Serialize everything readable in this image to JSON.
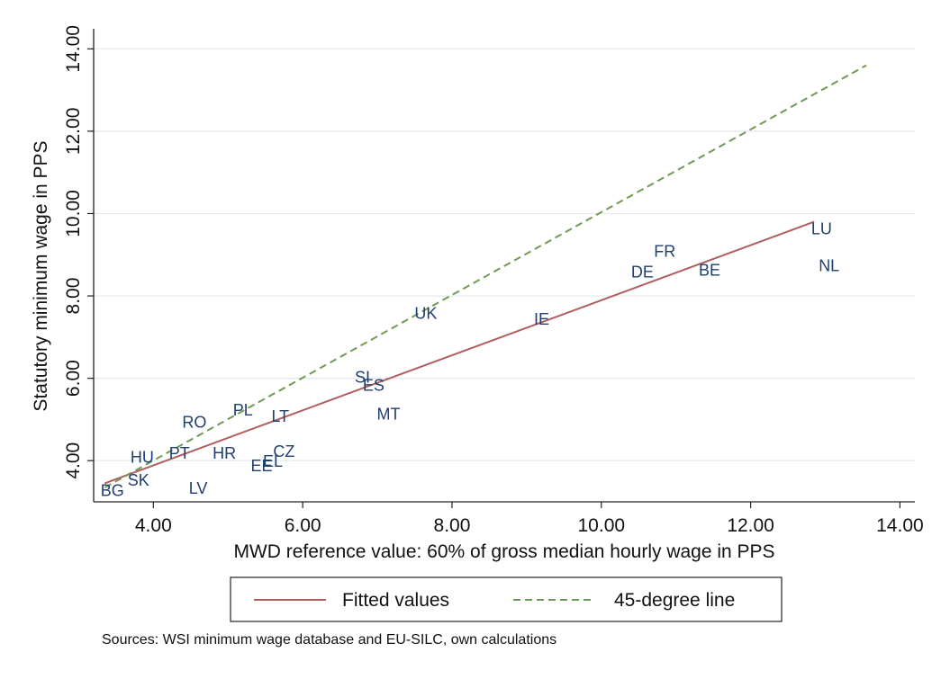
{
  "chart_data": {
    "type": "scatter",
    "xlabel": "MWD reference value: 60% of gross median hourly wage in PPS",
    "ylabel": "Statutory minimum wage in PPS",
    "xlim": [
      3.2,
      14.2
    ],
    "ylim": [
      3.0,
      14.4
    ],
    "xticks": [
      "4.00",
      "6.00",
      "8.00",
      "10.00",
      "12.00",
      "14.00"
    ],
    "yticks": [
      "4.00",
      "6.00",
      "8.00",
      "10.00",
      "12.00",
      "14.00"
    ],
    "grid": true,
    "legend_position": "bottom",
    "points": [
      {
        "label": "BG",
        "x": 3.45,
        "y": 3.3
      },
      {
        "label": "SK",
        "x": 3.8,
        "y": 3.55
      },
      {
        "label": "HU",
        "x": 3.85,
        "y": 4.1
      },
      {
        "label": "PT",
        "x": 4.35,
        "y": 4.2
      },
      {
        "label": "LV",
        "x": 4.6,
        "y": 3.35
      },
      {
        "label": "RO",
        "x": 4.55,
        "y": 4.95
      },
      {
        "label": "HR",
        "x": 4.95,
        "y": 4.2
      },
      {
        "label": "PL",
        "x": 5.2,
        "y": 5.25
      },
      {
        "label": "EE",
        "x": 5.45,
        "y": 3.9
      },
      {
        "label": "EL",
        "x": 5.6,
        "y": 4.0
      },
      {
        "label": "CZ",
        "x": 5.75,
        "y": 4.25
      },
      {
        "label": "LT",
        "x": 5.7,
        "y": 5.1
      },
      {
        "label": "SI",
        "x": 6.8,
        "y": 6.05
      },
      {
        "label": "ES",
        "x": 6.95,
        "y": 5.85
      },
      {
        "label": "MT",
        "x": 7.15,
        "y": 5.15
      },
      {
        "label": "UK",
        "x": 7.65,
        "y": 7.6
      },
      {
        "label": "IE",
        "x": 9.2,
        "y": 7.45
      },
      {
        "label": "DE",
        "x": 10.55,
        "y": 8.6
      },
      {
        "label": "FR",
        "x": 10.85,
        "y": 9.1
      },
      {
        "label": "BE",
        "x": 11.45,
        "y": 8.65
      },
      {
        "label": "LU",
        "x": 12.95,
        "y": 9.65
      },
      {
        "label": "NL",
        "x": 13.05,
        "y": 8.75
      }
    ],
    "series": [
      {
        "name": "Fitted values",
        "style": "solid",
        "color": "#b05e60",
        "x": [
          3.35,
          12.85
        ],
        "y": [
          3.45,
          9.8
        ]
      },
      {
        "name": "45-degree line",
        "style": "dashed",
        "color": "#6f9a54",
        "x": [
          3.35,
          13.55
        ],
        "y": [
          3.35,
          13.6
        ]
      }
    ],
    "note": "Sources: WSI minimum wage database and EU-SILC, own calculations"
  }
}
